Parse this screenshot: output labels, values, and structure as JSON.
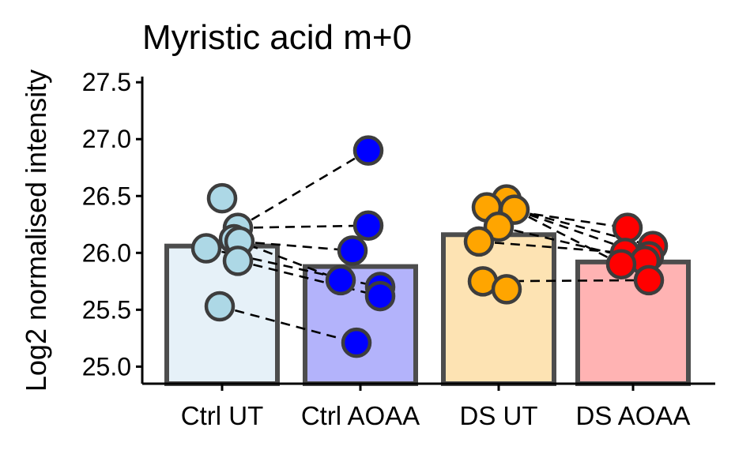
{
  "chart_data": {
    "type": "bar",
    "title": "Myristic acid m+0",
    "xlabel": "",
    "ylabel": "Log2 normalised intensity",
    "ylim": [
      24.85,
      27.55
    ],
    "yticks": [
      25.0,
      25.5,
      26.0,
      26.5,
      27.0,
      27.5
    ],
    "ytick_labels": [
      "25.0",
      "25.5",
      "26.0",
      "26.5",
      "27.0",
      "27.5"
    ],
    "grid": false,
    "legend": "none",
    "categories": [
      "Ctrl UT",
      "Ctrl AOAA",
      "DS UT",
      "DS AOAA"
    ],
    "values": [
      26.06,
      25.88,
      26.16,
      25.92
    ],
    "bar_colors": [
      "#e6f1f8",
      "#b3b3fb",
      "#fde3b3",
      "#ffb3b3"
    ],
    "point_colors": [
      "#add8e6",
      "#0000ff",
      "#ffa500",
      "#ff0000"
    ],
    "points": [
      [
        26.48,
        26.22,
        26.12,
        26.1,
        26.04,
        25.93,
        25.53
      ],
      [
        26.9,
        26.24,
        26.02,
        25.76,
        25.7,
        25.62,
        25.21
      ],
      [
        26.47,
        26.4,
        26.38,
        26.23,
        26.1,
        25.75,
        25.68
      ],
      [
        26.22,
        26.06,
        26.0,
        25.97,
        25.93,
        25.9,
        25.76
      ]
    ],
    "pairs": [
      {
        "from": 0,
        "to": 1,
        "links": [
          [
            26.22,
            26.9
          ],
          [
            26.22,
            26.24
          ],
          [
            26.12,
            25.76
          ],
          [
            26.04,
            25.7
          ],
          [
            25.93,
            25.62
          ],
          [
            25.53,
            25.21
          ],
          [
            26.1,
            26.02
          ]
        ]
      },
      {
        "from": 2,
        "to": 3,
        "links": [
          [
            26.4,
            26.22
          ],
          [
            26.38,
            26.06
          ],
          [
            26.38,
            25.97
          ],
          [
            26.38,
            25.9
          ],
          [
            26.23,
            25.93
          ],
          [
            26.1,
            26.0
          ],
          [
            25.75,
            25.76
          ]
        ]
      }
    ]
  }
}
